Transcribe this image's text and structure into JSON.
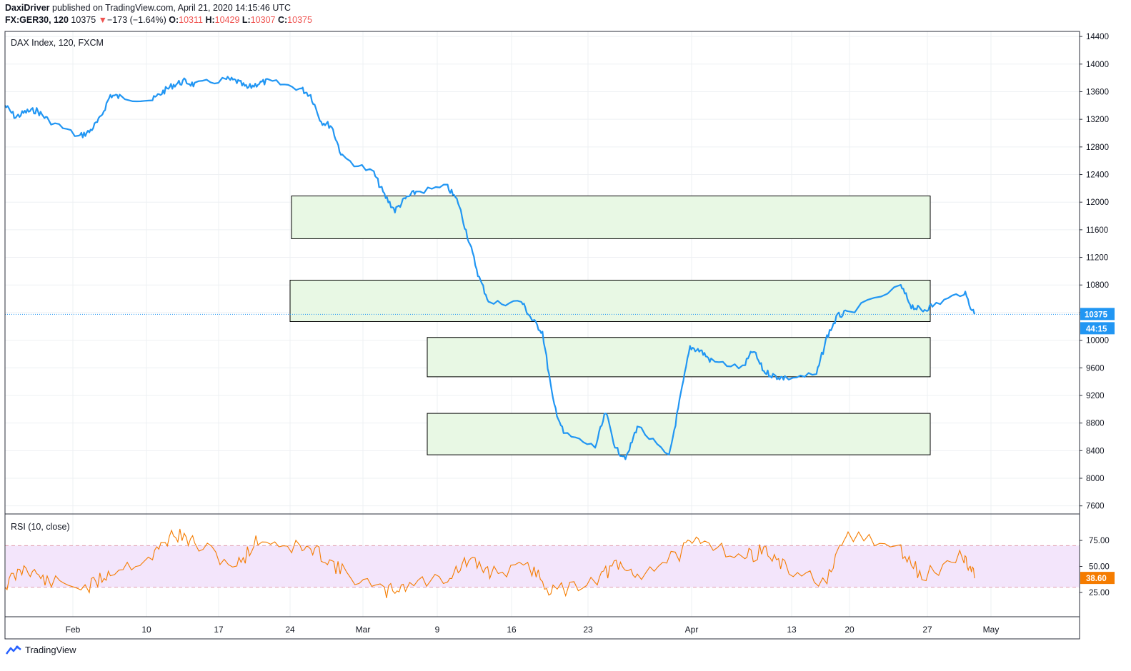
{
  "header": {
    "publisher": "DaxiDriver",
    "published_text": "published on TradingView.com, April 21, 2020 14:15:46 UTC",
    "symbol": "FX:GER30, 120",
    "last": "10375",
    "change_arrow": "▼",
    "change": "−173 (−1.64%)",
    "o_label": "O:",
    "o_val": "10311",
    "h_label": "H:",
    "h_val": "10429",
    "l_label": "L:",
    "l_val": "10307",
    "c_label": "C:",
    "c_val": "10375"
  },
  "footer": {
    "brand": "TradingView"
  },
  "colors": {
    "price_line": "#2196f3",
    "rsi_line": "#f57c00",
    "zone_fill": "#e8f8e4",
    "rsi_band": "#f3e5fb",
    "down": "#ef5350"
  },
  "chart_data": [
    {
      "type": "line",
      "title": "DAX Index, 120, FXCM",
      "ylim": [
        7400,
        14500
      ],
      "y_ticks": [
        7600,
        8000,
        8400,
        8800,
        9200,
        9600,
        10000,
        10400,
        10800,
        11200,
        11600,
        12000,
        12400,
        12800,
        13200,
        13600,
        14000,
        14400
      ],
      "x_ticks": [
        "Feb",
        "10",
        "17",
        "24",
        "Mar",
        "9",
        "16",
        "23",
        "Apr",
        "13",
        "20",
        "27",
        "May"
      ],
      "last_price_label": "10375",
      "countdown_label": "44:15",
      "zones": [
        {
          "from": 11470,
          "to": 12090
        },
        {
          "from": 10270,
          "to": 10870
        },
        {
          "from": 9470,
          "to": 10040
        },
        {
          "from": 8340,
          "to": 8940
        }
      ],
      "series": [
        {
          "x": [
            "2020-01-20",
            "2020-01-21",
            "2020-01-22",
            "2020-01-23",
            "2020-01-24",
            "2020-01-27",
            "2020-01-28",
            "2020-01-29",
            "2020-01-30",
            "2020-01-31",
            "2020-02-03",
            "2020-02-04",
            "2020-02-05",
            "2020-02-06",
            "2020-02-07",
            "2020-02-10",
            "2020-02-11",
            "2020-02-12",
            "2020-02-13",
            "2020-02-14",
            "2020-02-17",
            "2020-02-18",
            "2020-02-19",
            "2020-02-20",
            "2020-02-21",
            "2020-02-24",
            "2020-02-25",
            "2020-02-26",
            "2020-02-27",
            "2020-02-28",
            "2020-03-02",
            "2020-03-03",
            "2020-03-04",
            "2020-03-05",
            "2020-03-06",
            "2020-03-09",
            "2020-03-10",
            "2020-03-11",
            "2020-03-12",
            "2020-03-13",
            "2020-03-16",
            "2020-03-17",
            "2020-03-18",
            "2020-03-19",
            "2020-03-20",
            "2020-03-23",
            "2020-03-24",
            "2020-03-25",
            "2020-03-26",
            "2020-03-27",
            "2020-03-30",
            "2020-03-31",
            "2020-04-01",
            "2020-04-02",
            "2020-04-03",
            "2020-04-06",
            "2020-04-07",
            "2020-04-08",
            "2020-04-09",
            "2020-04-14",
            "2020-04-15",
            "2020-04-16",
            "2020-04-17",
            "2020-04-20",
            "2020-04-21"
          ],
          "y": [
            13400,
            13230,
            13310,
            13330,
            13200,
            12950,
            13020,
            13200,
            13550,
            13520,
            13480,
            13600,
            13700,
            13750,
            13700,
            13780,
            13750,
            13650,
            13720,
            13750,
            13650,
            13550,
            13170,
            13100,
            12650,
            12420,
            12100,
            11880,
            12050,
            12150,
            12220,
            12000,
            11450,
            10900,
            10530,
            10560,
            10300,
            10120,
            9120,
            8650,
            8450,
            8950,
            8410,
            8300,
            8760,
            8300,
            9100,
            9900,
            9850,
            9700,
            9600,
            9850,
            9550,
            9480,
            9450,
            9500,
            10050,
            10350,
            10400,
            10780,
            10500,
            10430,
            10500,
            10700,
            10375
          ]
        }
      ]
    },
    {
      "type": "line",
      "title": "RSI (10, close)",
      "ylim": [
        5,
        95
      ],
      "y_ticks": [
        25,
        50,
        75
      ],
      "band": [
        30,
        70
      ],
      "last_label": "38.60",
      "series": [
        {
          "x": [
            "2020-01-20",
            "2020-01-22",
            "2020-01-24",
            "2020-01-28",
            "2020-01-30",
            "2020-02-03",
            "2020-02-05",
            "2020-02-07",
            "2020-02-11",
            "2020-02-13",
            "2020-02-17",
            "2020-02-19",
            "2020-02-21",
            "2020-02-25",
            "2020-02-27",
            "2020-03-02",
            "2020-03-04",
            "2020-03-06",
            "2020-03-10",
            "2020-03-12",
            "2020-03-16",
            "2020-03-18",
            "2020-03-20",
            "2020-03-24",
            "2020-03-26",
            "2020-03-30",
            "2020-04-01",
            "2020-04-03",
            "2020-04-07",
            "2020-04-09",
            "2020-04-14",
            "2020-04-16",
            "2020-04-20",
            "2020-04-21"
          ],
          "y": [
            32,
            50,
            35,
            30,
            45,
            60,
            82,
            72,
            50,
            76,
            68,
            62,
            45,
            25,
            32,
            40,
            55,
            45,
            48,
            25,
            38,
            50,
            42,
            62,
            78,
            58,
            66,
            48,
            35,
            82,
            65,
            40,
            60,
            38.6
          ]
        }
      ]
    }
  ]
}
